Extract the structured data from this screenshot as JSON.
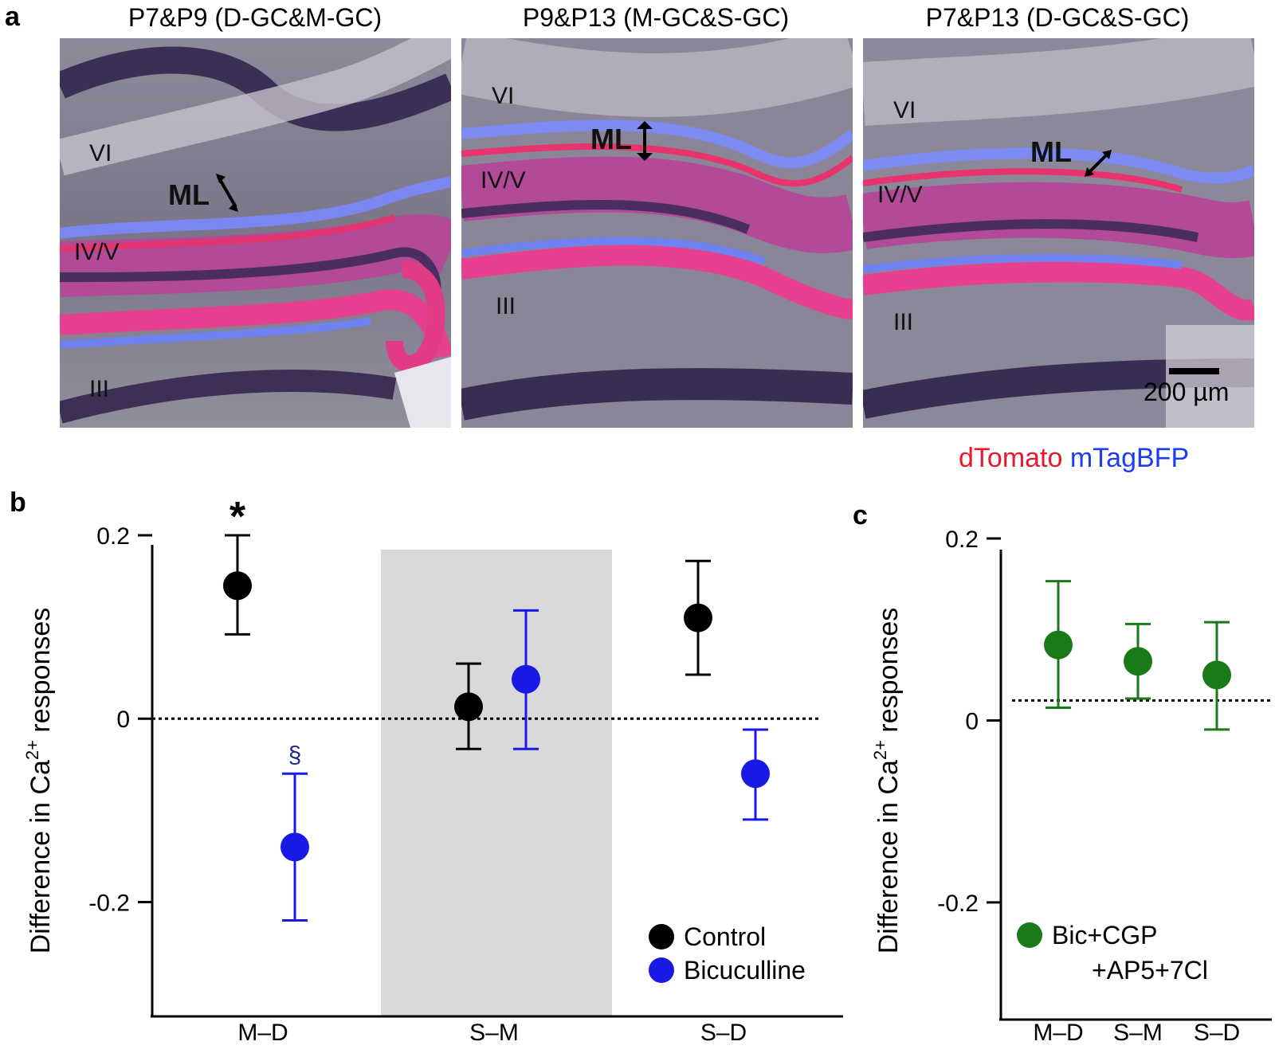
{
  "panel_a": {
    "letter": "a",
    "images": [
      {
        "title": "P7&P9 (D-GC&M-GC)",
        "layers": [
          "VI",
          "ML",
          "IV/V",
          "III"
        ]
      },
      {
        "title": "P9&P13 (M-GC&S-GC)",
        "layers": [
          "VI",
          "ML",
          "IV/V",
          "III"
        ]
      },
      {
        "title": "P7&P13 (D-GC&S-GC)",
        "layers": [
          "VI",
          "ML",
          "IV/V",
          "III"
        ]
      }
    ],
    "scale_bar": "200 µm",
    "legend": {
      "red": "dTomato",
      "blue": "mTagBFP"
    },
    "colors": {
      "red": "#e8192c",
      "blue": "#1f3cf0"
    }
  },
  "panel_b": {
    "letter": "b"
  },
  "panel_c": {
    "letter": "c"
  },
  "chart_data": [
    {
      "type": "scatter",
      "panel": "b",
      "ylabel": "Difference in Ca2+ responses",
      "ylim": [
        -0.25,
        0.2
      ],
      "yticks": [
        0.2,
        0,
        -0.2
      ],
      "ytick_labels": [
        "0.2",
        "0",
        "-0.2"
      ],
      "categories": [
        "M–D",
        "S–M",
        "S–D"
      ],
      "highlighted_category": "S–M",
      "reference_line": 0,
      "series": [
        {
          "name": "Control",
          "color": "#000000",
          "values": [
            0.145,
            0.013,
            0.11
          ],
          "err_upper": [
            0.2,
            0.06,
            0.172
          ],
          "err_lower": [
            0.092,
            -0.033,
            0.048
          ]
        },
        {
          "name": "Bicuculline",
          "color": "#1919e6",
          "values": [
            -0.14,
            0.043,
            -0.06
          ],
          "err_upper": [
            -0.06,
            0.118,
            -0.012
          ],
          "err_lower": [
            -0.22,
            -0.033,
            -0.11
          ]
        }
      ],
      "annotations": [
        {
          "text": "*",
          "category": "M–D",
          "series": "Control"
        },
        {
          "text": "§",
          "category": "M–D",
          "series": "Bicuculline"
        }
      ],
      "legend_position": "bottom-right"
    },
    {
      "type": "scatter",
      "panel": "c",
      "ylabel": "Difference in Ca2+ responses",
      "ylim": [
        -0.25,
        0.2
      ],
      "yticks": [
        0.2,
        0,
        -0.2
      ],
      "ytick_labels": [
        "0.2",
        "0",
        "-0.2"
      ],
      "categories": [
        "M–D",
        "S–M",
        "S–D"
      ],
      "reference_line": 0.022,
      "series": [
        {
          "name": "Bic+CGP +AP5+7Cl",
          "name_lines": [
            "Bic+CGP",
            "+AP5+7Cl"
          ],
          "color": "#1a7a1a",
          "values": [
            0.083,
            0.065,
            0.05
          ],
          "err_upper": [
            0.153,
            0.106,
            0.108
          ],
          "err_lower": [
            0.014,
            0.024,
            -0.01
          ]
        }
      ],
      "legend_position": "bottom"
    }
  ]
}
